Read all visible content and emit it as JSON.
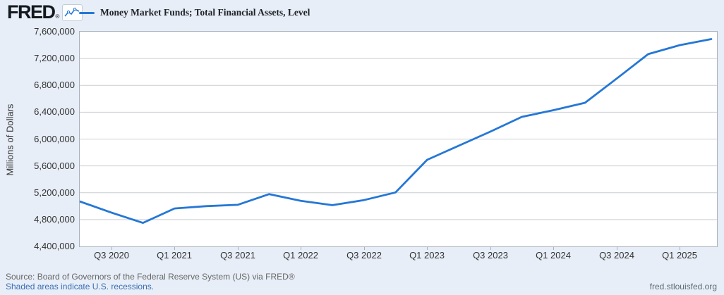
{
  "header": {
    "logo_text": "FRED",
    "logo_registered": "®",
    "legend": {
      "series_label": "Money Market Funds; Total Financial Assets, Level"
    }
  },
  "colors": {
    "background": "#e7eef7",
    "plot_background": "#ffffff",
    "line": "#2577d6",
    "gridline": "#c9cdd2",
    "plot_border": "#a9b1b9",
    "axis_text": "#333333",
    "footer_text": "#676767",
    "link": "#3c6eb4"
  },
  "chart_data": {
    "type": "line",
    "title": "Money Market Funds; Total Financial Assets, Level",
    "xlabel": "",
    "ylabel": "Millions of Dollars",
    "ylim": [
      4400000,
      7600000
    ],
    "grid": "horizontal",
    "legend_position": "top-left",
    "x": [
      "2020 Q2",
      "2020 Q3",
      "2020 Q4",
      "2021 Q1",
      "2021 Q2",
      "2021 Q3",
      "2021 Q4",
      "2022 Q1",
      "2022 Q2",
      "2022 Q3",
      "2022 Q4",
      "2023 Q1",
      "2023 Q2",
      "2023 Q3",
      "2023 Q4",
      "2024 Q1",
      "2024 Q2",
      "2024 Q3",
      "2024 Q4",
      "2025 Q1",
      "2025 Q2"
    ],
    "values": [
      5070000,
      4905000,
      4750000,
      4965000,
      5000000,
      5020000,
      5180000,
      5080000,
      5015000,
      5090000,
      5205000,
      5690000,
      5900000,
      6110000,
      6330000,
      6430000,
      6540000,
      6900000,
      7265000,
      7400000,
      7490000
    ],
    "y_tick_values": [
      7600000,
      7200000,
      6800000,
      6400000,
      6000000,
      5600000,
      5200000,
      4800000,
      4400000
    ],
    "y_tick_labels": [
      "7,600,000",
      "7,200,000",
      "6,800,000",
      "6,400,000",
      "6,000,000",
      "5,600,000",
      "5,200,000",
      "4,800,000",
      "4,400,000"
    ],
    "x_tick_labels": [
      "Q3 2020",
      "Q1 2021",
      "Q3 2021",
      "Q1 2022",
      "Q3 2022",
      "Q1 2023",
      "Q3 2023",
      "Q1 2024",
      "Q3 2024",
      "Q1 2025"
    ]
  },
  "footer": {
    "source_line": "Source: Board of Governors of the Federal Reserve System (US) via FRED®",
    "recession_note": "Shaded areas indicate U.S. recessions.",
    "site_url": "fred.stlouisfed.org"
  }
}
